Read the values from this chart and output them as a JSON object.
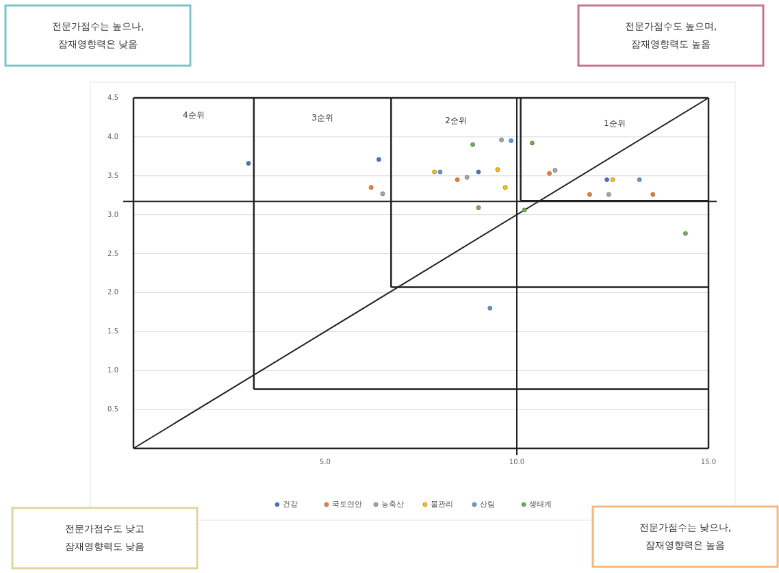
{
  "chart_data": {
    "type": "scatter",
    "xlim": [
      0,
      15
    ],
    "ylim": [
      0,
      4.5
    ],
    "xticks": [
      {
        "value": 5,
        "label": "5.0"
      },
      {
        "value": 10,
        "label": "10.0"
      },
      {
        "value": 15,
        "label": "15.0"
      }
    ],
    "yticks": [
      {
        "value": 0.5,
        "label": "0.5"
      },
      {
        "value": 1,
        "label": "1.0"
      },
      {
        "value": 1.5,
        "label": "1.5"
      },
      {
        "value": 2,
        "label": "2.0"
      },
      {
        "value": 2.5,
        "label": "2.5"
      },
      {
        "value": 3,
        "label": "3.0"
      },
      {
        "value": 3.5,
        "label": "3.5"
      },
      {
        "value": 4,
        "label": "4.0"
      },
      {
        "value": 4.5,
        "label": "4.5"
      }
    ],
    "grid": "y",
    "legend": "bottom",
    "marker": "circle",
    "series": [
      {
        "type": "line",
        "color": "#222222",
        "marker": "none",
        "x": [
          0,
          15
        ],
        "values": [
          0,
          4.5
        ]
      },
      {
        "name": "건강",
        "color": "#4472c4",
        "x": [
          3.0,
          6.4,
          9.0,
          12.35
        ],
        "values": [
          3.66,
          3.71,
          3.55,
          3.45
        ]
      },
      {
        "name": "국토연안",
        "color": "#ed7d31",
        "x": [
          6.2,
          8.45,
          10.85,
          11.9,
          13.55
        ],
        "values": [
          3.35,
          3.45,
          3.53,
          3.26,
          3.26
        ]
      },
      {
        "name": "농축산",
        "color": "#a5a5a5",
        "x": [
          6.5,
          8.7,
          9.6,
          11.0,
          12.4
        ],
        "values": [
          3.27,
          3.48,
          3.96,
          3.57,
          3.26
        ]
      },
      {
        "name": "물관리",
        "color": "#ffc000",
        "x": [
          7.85,
          9.5,
          9.7,
          12.5
        ],
        "values": [
          3.55,
          3.58,
          3.35,
          3.45
        ]
      },
      {
        "name": "산림",
        "color": "#5b9bd5",
        "x": [
          8.0,
          9.3,
          9.85,
          13.2
        ],
        "values": [
          3.55,
          1.8,
          3.95,
          3.45
        ]
      },
      {
        "name": "생태계",
        "color": "#70ad47",
        "x": [
          8.85,
          9.0,
          10.2,
          10.4,
          14.4
        ],
        "values": [
          3.9,
          3.09,
          3.06,
          3.92,
          2.76
        ]
      }
    ],
    "ref_lines": [
      {
        "axis": "y",
        "value": 3.17,
        "color": "#222222"
      },
      {
        "axis": "x",
        "value": 10.0,
        "color": "#222222"
      },
      {
        "axis": "x",
        "value": 0,
        "color": "#222222"
      },
      {
        "axis": "y",
        "value": 0,
        "color": "#222222"
      },
      {
        "axis": "x",
        "value": 3.14,
        "color": "#222222"
      },
      {
        "axis": "y",
        "value": 0.76,
        "color": "#222222"
      },
      {
        "axis": "x",
        "value": 6.72,
        "color": "#222222"
      },
      {
        "axis": "y",
        "value": 2.07,
        "color": "#222222"
      },
      {
        "axis": "x",
        "value": 10.1,
        "color": "#222222"
      },
      {
        "axis": "y",
        "value": 3.18,
        "color": "#222222"
      }
    ],
    "annotations": [
      "4순위",
      "3순위",
      "2순위",
      "1순위",
      "전문가점수는 높으나,\n잠재영향력은 낮음",
      "전문가점수도 높으며,\n잠재영향력도 높음",
      "전문가점수도 낮고\n잠재영향력도 낮음",
      "전문가점수는 낮으나,\n잠재영향력은 높음"
    ]
  }
}
